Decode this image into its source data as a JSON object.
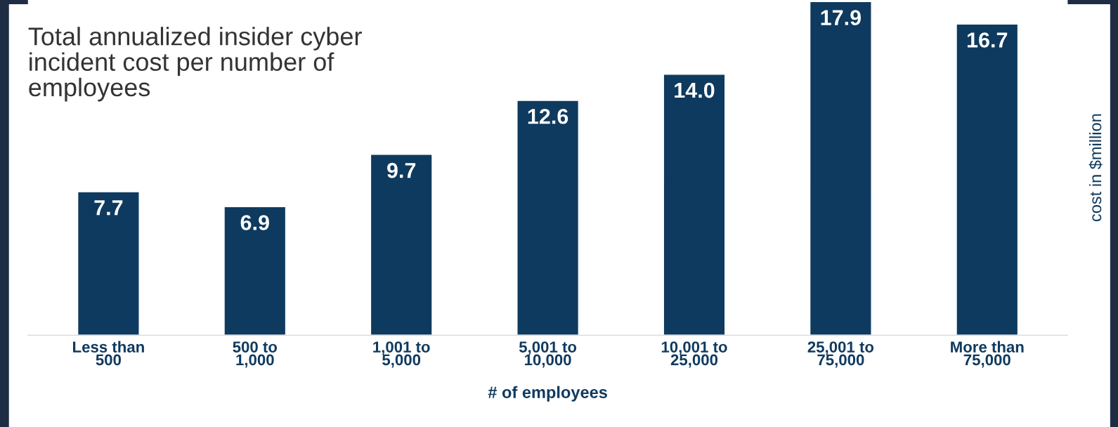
{
  "chart_data": {
    "type": "bar",
    "title": "Total annualized insider cyber\nincident cost per number of\nemployees",
    "categories": [
      "Less than\n500",
      "500 to\n1,000",
      "1,001 to\n5,000",
      "5,001 to\n10,000",
      "10,001 to\n25,000",
      "25,001 to\n75,000",
      "More than\n75,000"
    ],
    "values": [
      7.7,
      6.9,
      9.7,
      12.6,
      14.0,
      17.9,
      16.7
    ],
    "value_labels": [
      "7.7",
      "6.9",
      "9.7",
      "12.6",
      "14.0",
      "17.9",
      "16.7"
    ],
    "color": "#0f3a5f",
    "xlabel": "# of employees",
    "ylabel": "cost in $million",
    "grid": false
  }
}
